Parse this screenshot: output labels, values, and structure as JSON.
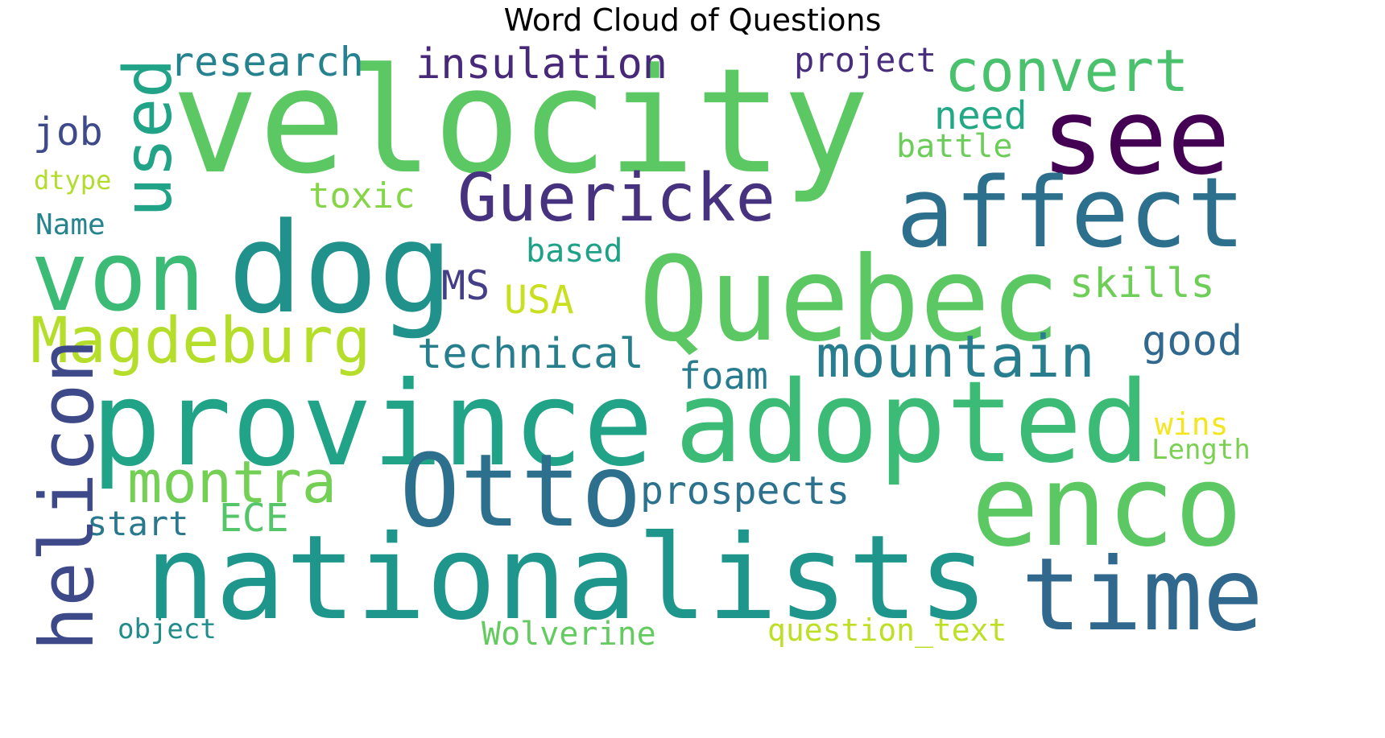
{
  "title": "Word Cloud of Questions",
  "words": [
    {
      "id": "velocity",
      "text": "velocity",
      "color": "#5cc863"
    },
    {
      "id": "see",
      "text": "see",
      "color": "#440154"
    },
    {
      "id": "affect",
      "text": "affect",
      "color": "#2d708e"
    },
    {
      "id": "quebec",
      "text": "Quebec",
      "color": "#5cc863"
    },
    {
      "id": "dog",
      "text": "dog",
      "color": "#21918c"
    },
    {
      "id": "von",
      "text": "von",
      "color": "#3bbb75"
    },
    {
      "id": "province",
      "text": "province",
      "color": "#20a386"
    },
    {
      "id": "adopted",
      "text": "adopted",
      "color": "#3bbb75"
    },
    {
      "id": "enco",
      "text": "enco",
      "color": "#5cc863"
    },
    {
      "id": "otto",
      "text": "Otto",
      "color": "#2d708e"
    },
    {
      "id": "nationalists",
      "text": "nationalists",
      "color": "#1f968b"
    },
    {
      "id": "time",
      "text": "time",
      "color": "#31688e"
    },
    {
      "id": "guericke",
      "text": "Guericke",
      "color": "#46327e"
    },
    {
      "id": "used",
      "text": "used",
      "color": "#20a386"
    },
    {
      "id": "magdeburg",
      "text": "Magdeburg",
      "color": "#b5de2b"
    },
    {
      "id": "mountain",
      "text": "mountain",
      "color": "#287d8e"
    },
    {
      "id": "helicon",
      "text": "helicon",
      "color": "#3e4989"
    },
    {
      "id": "montra",
      "text": "montra",
      "color": "#73d055"
    },
    {
      "id": "convert",
      "text": "convert",
      "color": "#4ac16d"
    },
    {
      "id": "research",
      "text": "research",
      "color": "#26828e"
    },
    {
      "id": "insulation",
      "text": "insulation",
      "color": "#482878"
    },
    {
      "id": "project",
      "text": "project",
      "color": "#472d7b"
    },
    {
      "id": "technical",
      "text": "technical",
      "color": "#277f8e"
    },
    {
      "id": "prospects",
      "text": "prospects",
      "color": "#2c728e"
    },
    {
      "id": "good",
      "text": "good",
      "color": "#31688e"
    },
    {
      "id": "skills",
      "text": "skills",
      "color": "#6ece58"
    },
    {
      "id": "foam",
      "text": "foam",
      "color": "#287c8e"
    },
    {
      "id": "need",
      "text": "need",
      "color": "#22a884"
    },
    {
      "id": "battle",
      "text": "battle",
      "color": "#6ccd5a"
    },
    {
      "id": "job",
      "text": "job",
      "color": "#3e4a89"
    },
    {
      "id": "toxic",
      "text": "toxic",
      "color": "#86d549"
    },
    {
      "id": "ms",
      "text": "MS",
      "color": "#433e85"
    },
    {
      "id": "usa",
      "text": "USA",
      "color": "#c8e020"
    },
    {
      "id": "based",
      "text": "based",
      "color": "#1fa187"
    },
    {
      "id": "start",
      "text": "start",
      "color": "#2a788e"
    },
    {
      "id": "ece",
      "text": "ECE",
      "color": "#54c568"
    },
    {
      "id": "wolverine",
      "text": "Wolverine",
      "color": "#63cb5f"
    },
    {
      "id": "question-text",
      "text": "question_text",
      "color": "#bddf26"
    },
    {
      "id": "object",
      "text": "object",
      "color": "#228c8d"
    },
    {
      "id": "name",
      "text": "Name",
      "color": "#25848e"
    },
    {
      "id": "dtype",
      "text": "dtype",
      "color": "#b2dd2d"
    },
    {
      "id": "wins",
      "text": "wins",
      "color": "#f4e61e"
    },
    {
      "id": "length",
      "text": "Length",
      "color": "#7ad151"
    }
  ]
}
